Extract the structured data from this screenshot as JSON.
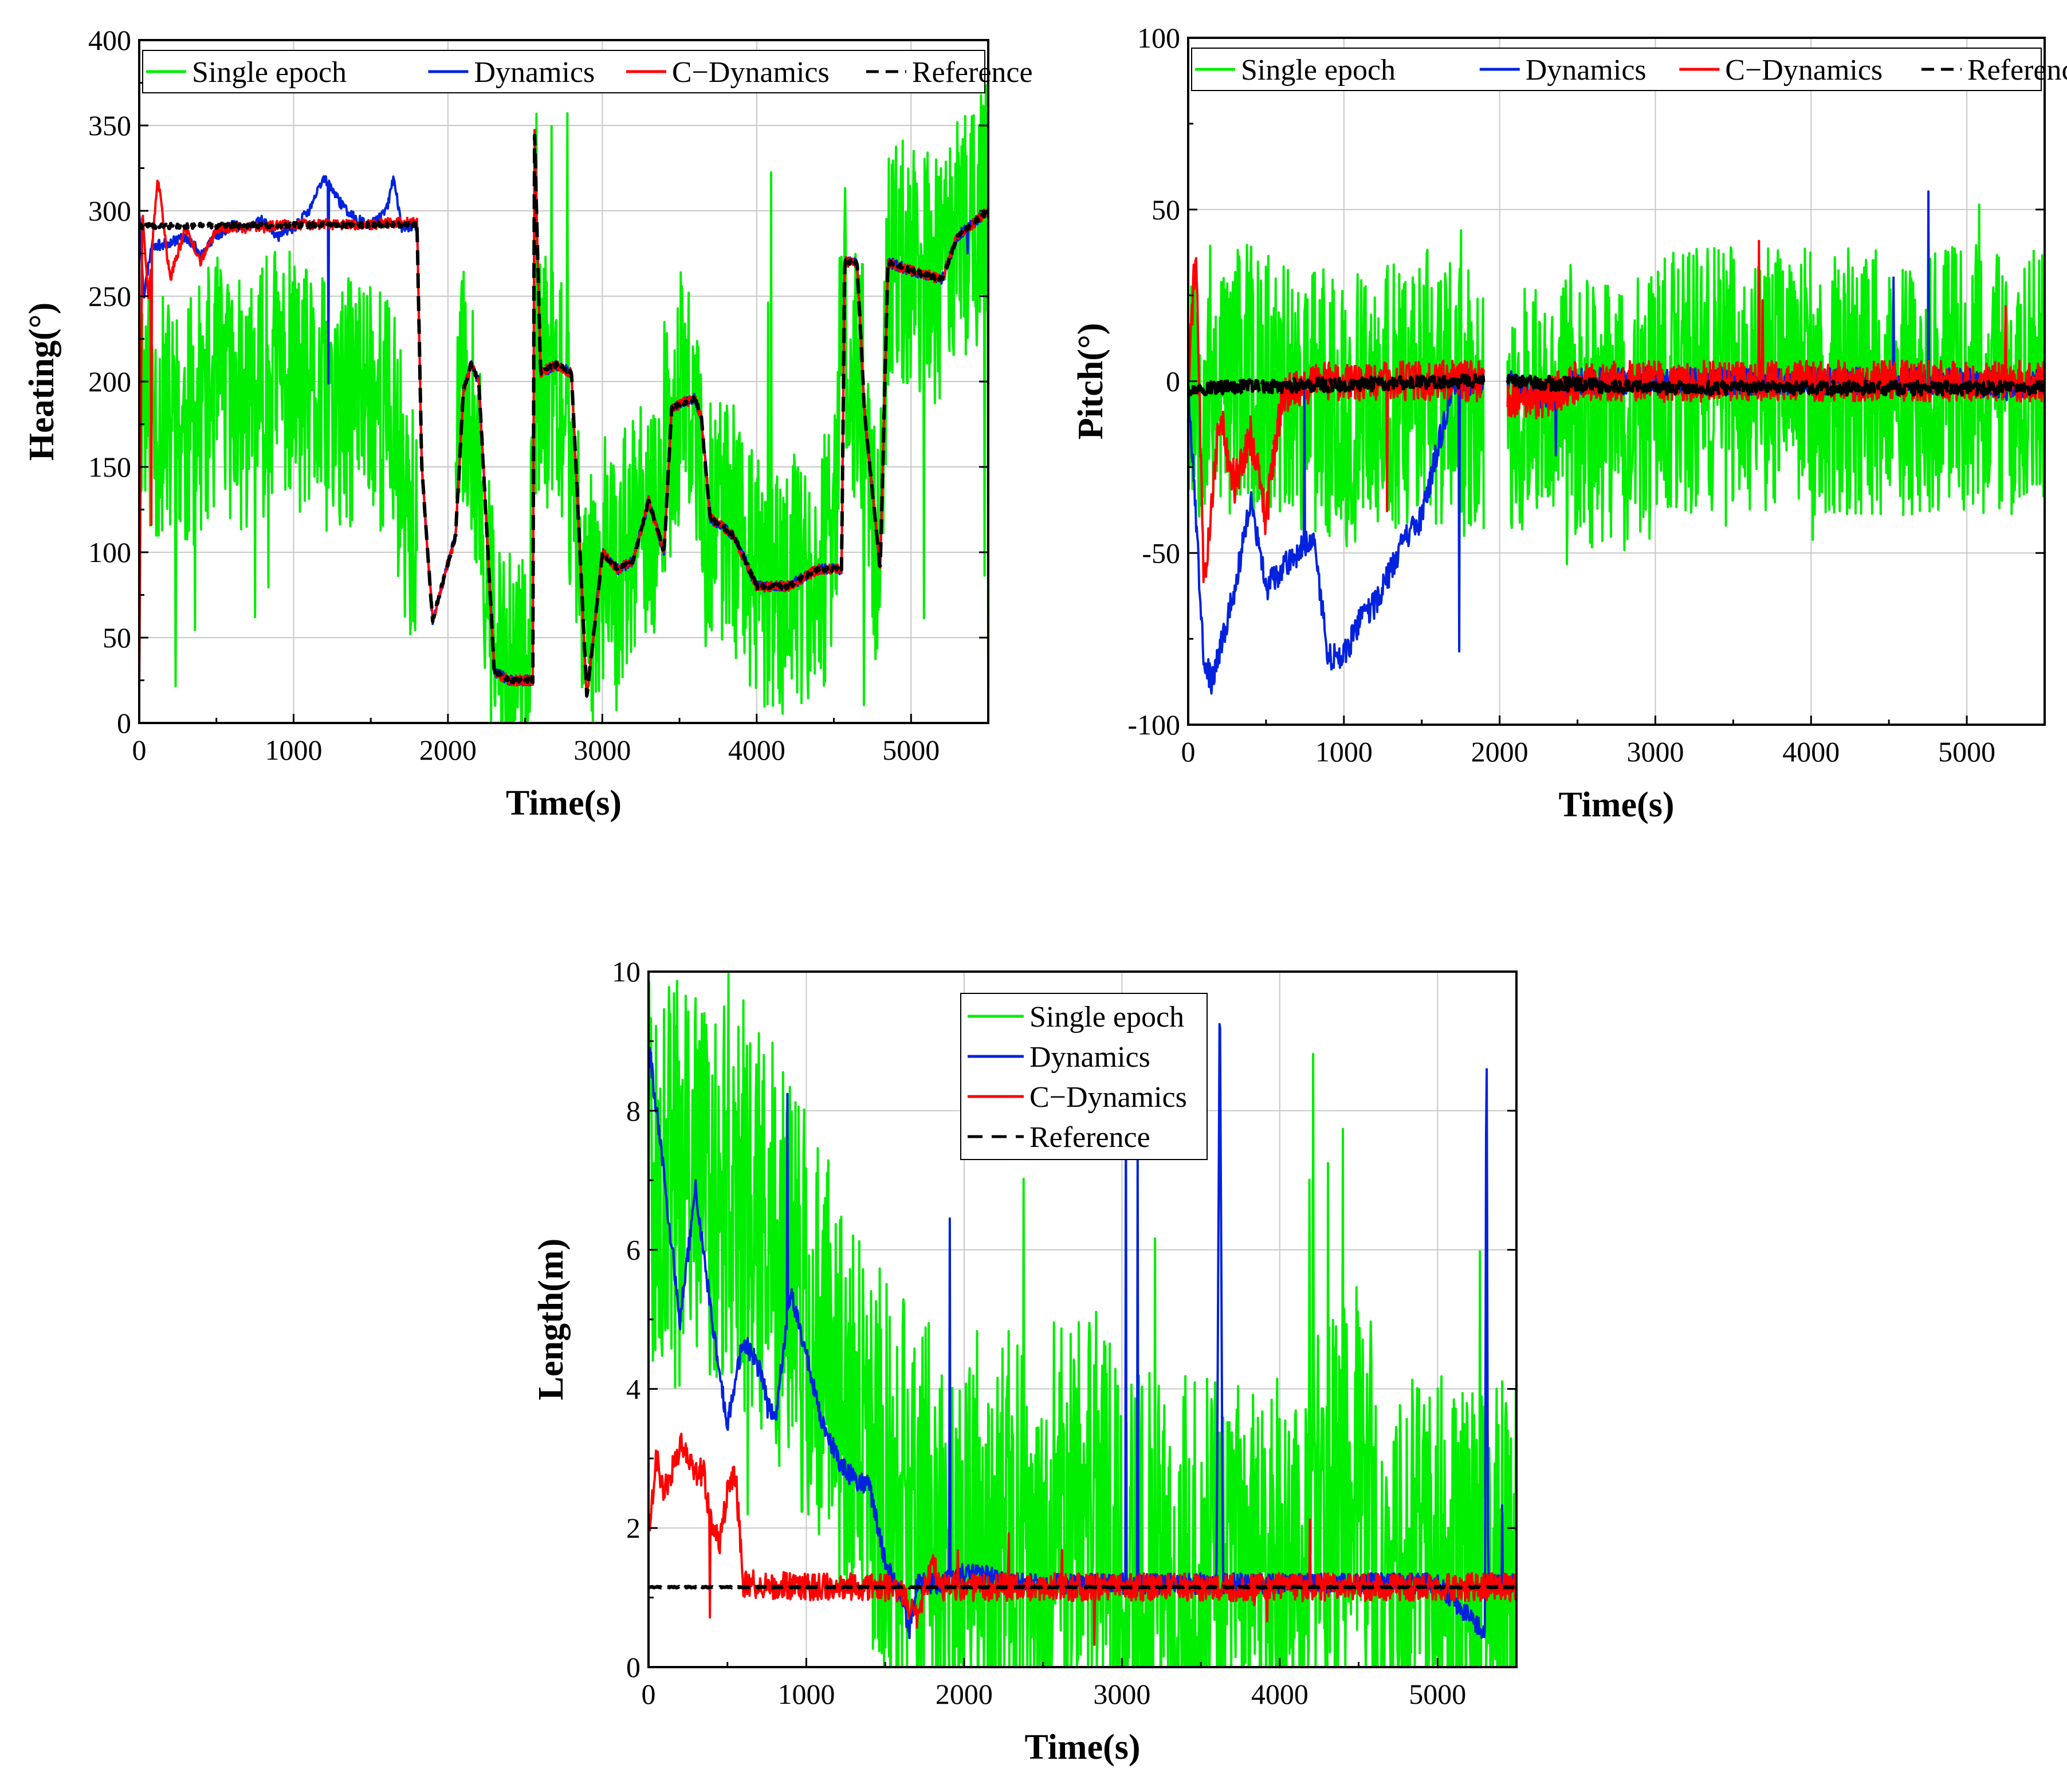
{
  "figure": {
    "background": "#ffffff"
  },
  "colors": {
    "single_epoch": "#00ee00",
    "dynamics": "#0022dd",
    "c_dynamics": "#ff0000",
    "reference": "#000000",
    "grid": "#c8c8c8"
  },
  "chart_data": [
    {
      "id": "heading",
      "type": "line",
      "title": "",
      "xlabel": "Time(s)",
      "ylabel": "Heating(°)",
      "xlim": [
        0,
        5500
      ],
      "ylim": [
        0,
        400
      ],
      "xticks": [
        0,
        1000,
        2000,
        3000,
        4000,
        5000
      ],
      "yticks": [
        0,
        50,
        100,
        150,
        200,
        250,
        300,
        350,
        400
      ],
      "grid": true,
      "legend": {
        "placement": "top-inside-horizontal",
        "entries": [
          "Single epoch",
          "Dynamics",
          "C−Dynamics",
          "Reference"
        ]
      },
      "series": [
        {
          "name": "Single epoch",
          "style": "solid",
          "seed": 11,
          "noise": 150,
          "spike_prob": 0.02,
          "spike_lo": 0,
          "spike_hi": 358,
          "x": [
            0,
            100,
            300,
            500,
            700,
            900,
            1100,
            1300,
            1500,
            1650,
            1800,
            1850,
            1950,
            2050,
            2100,
            2200,
            2300,
            2400,
            2500,
            2550,
            2600,
            2700,
            2800,
            2900,
            3000,
            3100,
            3200,
            3300,
            3400,
            3500,
            3600,
            3650,
            3700,
            3900,
            4000,
            4200,
            4400,
            4500,
            4560,
            4600,
            4700,
            4760,
            4800,
            4850,
            5000,
            5200,
            5300,
            5500
          ],
          "y": [
            200,
            180,
            170,
            200,
            180,
            210,
            190,
            180,
            200,
            170,
            100,
            null,
            null,
            150,
            200,
            150,
            40,
            25,
            25,
            120,
            200,
            200,
            150,
            60,
            100,
            80,
            120,
            100,
            160,
            190,
            180,
            120,
            120,
            110,
            80,
            80,
            90,
            100,
            260,
            200,
            200,
            100,
            100,
            260,
            270,
            260,
            280,
            300
          ]
        },
        {
          "name": "Dynamics",
          "style": "solid",
          "seed": 23,
          "noise": 6,
          "spike_prob": 0.003,
          "spike_lo": 40,
          "spike_hi": 340,
          "x": [
            0,
            30,
            80,
            150,
            300,
            400,
            500,
            600,
            700,
            800,
            900,
            1000,
            1100,
            1200,
            1300,
            1400,
            1500,
            1600,
            1650,
            1700,
            1800,
            1830,
            1900,
            2050,
            2100,
            2150,
            2200,
            2300,
            2400,
            2550,
            2560,
            2600,
            2700,
            2800,
            2900,
            3000,
            3100,
            3200,
            3300,
            3400,
            3450,
            3600,
            3640,
            3700,
            3850,
            3900,
            4000,
            4200,
            4400,
            4550,
            4570,
            4650,
            4700,
            4800,
            4850,
            5000,
            5200,
            5300,
            5500
          ],
          "y": [
            300,
            250,
            280,
            280,
            285,
            275,
            285,
            292,
            290,
            295,
            285,
            290,
            300,
            320,
            305,
            295,
            292,
            300,
            320,
            290,
            292,
            150,
            60,
            110,
            195,
            210,
            200,
            30,
            25,
            25,
            350,
            205,
            210,
            205,
            15,
            100,
            90,
            95,
            130,
            100,
            185,
            190,
            180,
            120,
            110,
            100,
            80,
            80,
            90,
            90,
            270,
            270,
            180,
            90,
            270,
            265,
            260,
            285,
            300
          ]
        },
        {
          "name": "C−Dynamics",
          "style": "solid",
          "seed": 37,
          "noise": 6,
          "spike_prob": 0.002,
          "spike_lo": 20,
          "spike_hi": 340,
          "x": [
            0,
            20,
            60,
            120,
            200,
            300,
            400,
            500,
            600,
            700,
            800,
            900,
            1000,
            1100,
            1200,
            1300,
            1400,
            1500,
            1600,
            1700,
            1800,
            1830,
            1900,
            2050,
            2100,
            2150,
            2200,
            2300,
            2400,
            2550,
            2560,
            2600,
            2700,
            2800,
            2900,
            3000,
            3100,
            3200,
            3300,
            3400,
            3450,
            3600,
            3640,
            3700,
            3850,
            3900,
            4000,
            4200,
            4400,
            4550,
            4570,
            4650,
            4700,
            4800,
            4850,
            5000,
            5200,
            5300,
            5500
          ],
          "y": [
            20,
            300,
            250,
            320,
            260,
            290,
            270,
            290,
            290,
            290,
            290,
            292,
            292,
            292,
            292,
            292,
            292,
            292,
            293,
            293,
            293,
            150,
            60,
            110,
            195,
            210,
            200,
            30,
            25,
            25,
            350,
            205,
            210,
            205,
            15,
            100,
            90,
            95,
            130,
            100,
            185,
            190,
            180,
            120,
            110,
            100,
            80,
            80,
            90,
            90,
            270,
            270,
            180,
            90,
            270,
            265,
            260,
            285,
            300
          ]
        },
        {
          "name": "Reference",
          "style": "dashed",
          "seed": 41,
          "noise": 3,
          "spike_prob": 0,
          "spike_lo": 0,
          "spike_hi": 0,
          "x": [
            0,
            1800,
            1830,
            1900,
            2050,
            2100,
            2150,
            2200,
            2300,
            2400,
            2550,
            2560,
            2600,
            2700,
            2800,
            2900,
            3000,
            3100,
            3200,
            3300,
            3400,
            3450,
            3600,
            3640,
            3700,
            3850,
            3900,
            4000,
            4200,
            4400,
            4550,
            4570,
            4650,
            4700,
            4800,
            4850,
            5000,
            5200,
            5300,
            5500
          ],
          "y": [
            291,
            292,
            150,
            60,
            110,
            195,
            210,
            200,
            30,
            25,
            25,
            350,
            205,
            210,
            205,
            15,
            100,
            90,
            95,
            130,
            100,
            185,
            190,
            180,
            120,
            110,
            100,
            80,
            80,
            90,
            90,
            270,
            270,
            180,
            90,
            270,
            265,
            260,
            285,
            300
          ]
        }
      ]
    },
    {
      "id": "pitch",
      "type": "line",
      "title": "",
      "xlabel": "Time(s)",
      "ylabel": "Pitch(°)",
      "xlim": [
        0,
        5500
      ],
      "ylim": [
        -100,
        100
      ],
      "xticks": [
        0,
        1000,
        2000,
        3000,
        4000,
        5000
      ],
      "yticks": [
        -100,
        -50,
        0,
        50,
        100
      ],
      "grid": true,
      "legend": {
        "placement": "top-inside-horizontal",
        "entries": [
          "Single epoch",
          "Dynamics",
          "C−Dynamics",
          "Reference"
        ]
      },
      "series": [
        {
          "name": "Single epoch",
          "style": "solid",
          "seed": 53,
          "noise": 80,
          "spike_prob": 0.015,
          "spike_lo": -60,
          "spike_hi": 60,
          "x": [
            0,
            500,
            1000,
            1500,
            1900,
            1950,
            2050,
            2300,
            2350,
            2550,
            2950,
            3000,
            3500,
            4000,
            4500,
            5000,
            5500
          ],
          "y": [
            0,
            0,
            -10,
            0,
            -10,
            null,
            -10,
            -10,
            0,
            -10,
            -10,
            0,
            0,
            0,
            0,
            0,
            0
          ]
        },
        {
          "name": "Dynamics",
          "style": "solid",
          "seed": 67,
          "noise": 8,
          "spike_prob": 0.003,
          "spike_lo": -80,
          "spike_hi": 60,
          "x": [
            0,
            50,
            100,
            150,
            250,
            300,
            400,
            500,
            600,
            700,
            800,
            900,
            1000,
            1100,
            1200,
            1300,
            1400,
            1500,
            1600,
            1700,
            1800,
            1900,
            1950,
            2050,
            2300,
            2500,
            3000,
            3500,
            4000,
            4500,
            5000,
            5300,
            5500
          ],
          "y": [
            0,
            -40,
            -80,
            -88,
            -70,
            -60,
            -35,
            -60,
            -55,
            -50,
            -45,
            -80,
            -80,
            -70,
            -65,
            -55,
            -45,
            -40,
            -20,
            0,
            0,
            0,
            null,
            0,
            -5,
            0,
            0,
            0,
            0,
            0,
            0,
            -2,
            0
          ]
        },
        {
          "name": "C−Dynamics",
          "style": "solid",
          "seed": 79,
          "noise": 12,
          "spike_prob": 0.004,
          "spike_lo": -80,
          "spike_hi": 65,
          "x": [
            0,
            50,
            100,
            200,
            300,
            400,
            500,
            600,
            800,
            1000,
            1500,
            1700,
            1900,
            1950,
            2050,
            2300,
            2500,
            3000,
            3500,
            4000,
            4500,
            5000,
            5500
          ],
          "y": [
            0,
            40,
            -60,
            -10,
            -30,
            -15,
            -40,
            -5,
            0,
            0,
            0,
            0,
            0,
            null,
            -5,
            -5,
            0,
            0,
            0,
            0,
            0,
            0,
            0
          ]
        },
        {
          "name": "Reference",
          "style": "dashed",
          "seed": 97,
          "noise": 4,
          "spike_prob": 0,
          "spike_lo": 0,
          "spike_hi": 0,
          "x": [
            0,
            1900,
            1950,
            2050,
            3000,
            5500
          ],
          "y": [
            -2,
            0,
            null,
            0,
            -2,
            -2
          ]
        }
      ]
    },
    {
      "id": "length",
      "type": "line",
      "title": "",
      "xlabel": "Time(s)",
      "ylabel": "Length(m)",
      "xlim": [
        0,
        5500
      ],
      "ylim": [
        0,
        10
      ],
      "xticks": [
        0,
        1000,
        2000,
        3000,
        4000,
        5000
      ],
      "yticks": [
        0,
        2,
        4,
        6,
        8,
        10
      ],
      "grid": true,
      "legend": {
        "placement": "top-right-vertical",
        "entries": [
          "Single epoch",
          "Dynamics",
          "C−Dynamics",
          "Reference"
        ]
      },
      "series": [
        {
          "name": "Single epoch",
          "style": "solid",
          "seed": 101,
          "noise": 6,
          "spike_prob": 0.01,
          "spike_lo": 1.0,
          "spike_hi": 9.5,
          "x": [
            0,
            200,
            500,
            800,
            1000,
            1200,
            1400,
            1600,
            1800,
            1850,
            2050,
            2300,
            2400,
            2600,
            2800,
            3000,
            3500,
            4000,
            4500,
            4600,
            5000,
            5500
          ],
          "y": [
            7,
            7,
            7,
            6,
            5,
            4,
            3,
            2.5,
            2,
            1.2,
            2,
            2,
            1.2,
            2.2,
            2.4,
            1.2,
            1.3,
            1.2,
            2.5,
            1.2,
            1.2,
            1.2
          ]
        },
        {
          "name": "Dynamics",
          "style": "solid",
          "seed": 113,
          "noise": 0.3,
          "spike_prob": 0.003,
          "spike_lo": 1.2,
          "spike_hi": 10,
          "x": [
            0,
            100,
            200,
            300,
            400,
            500,
            600,
            700,
            800,
            900,
            1000,
            1100,
            1200,
            1300,
            1400,
            1500,
            1600,
            1650,
            1700,
            1800,
            1850,
            2050,
            2300,
            2400,
            3000,
            3600,
            3620,
            3640,
            3900,
            4500,
            5000,
            5300,
            5310,
            5320,
            5500
          ],
          "y": [
            9,
            7,
            5,
            6.9,
            5,
            3.5,
            4.7,
            4.3,
            3.5,
            5.4,
            4.5,
            3.5,
            3.0,
            2.7,
            2.6,
            1.5,
            1.0,
            0.5,
            1.2,
            1.2,
            1.2,
            1.4,
            1.2,
            1.2,
            1.2,
            1.2,
            10,
            1.2,
            1.2,
            1.2,
            1.2,
            0.5,
            10,
            1.2,
            1.2
          ]
        },
        {
          "name": "C−Dynamics",
          "style": "solid",
          "seed": 127,
          "noise": 0.4,
          "spike_prob": 0.004,
          "spike_lo": 0.3,
          "spike_hi": 2.2,
          "x": [
            0,
            50,
            100,
            200,
            300,
            350,
            400,
            450,
            500,
            550,
            600,
            1000,
            1500,
            1600,
            1700,
            1800,
            1850,
            2050,
            2300,
            3000,
            3600,
            4000,
            5000,
            5300,
            5500
          ],
          "y": [
            2,
            3,
            2.5,
            3.2,
            2.8,
            2.8,
            2.0,
            1.8,
            2.5,
            2.8,
            1.2,
            1.15,
            1.15,
            1.1,
            0.7,
            1.5,
            1.15,
            1.15,
            1.15,
            1.15,
            1.15,
            1.15,
            1.15,
            1.15,
            1.15
          ]
        },
        {
          "name": "Reference",
          "style": "dashed",
          "seed": 131,
          "noise": 0.02,
          "spike_prob": 0,
          "spike_lo": 0,
          "spike_hi": 0,
          "x": [
            0,
            5500
          ],
          "y": [
            1.15,
            1.15
          ]
        }
      ]
    }
  ]
}
